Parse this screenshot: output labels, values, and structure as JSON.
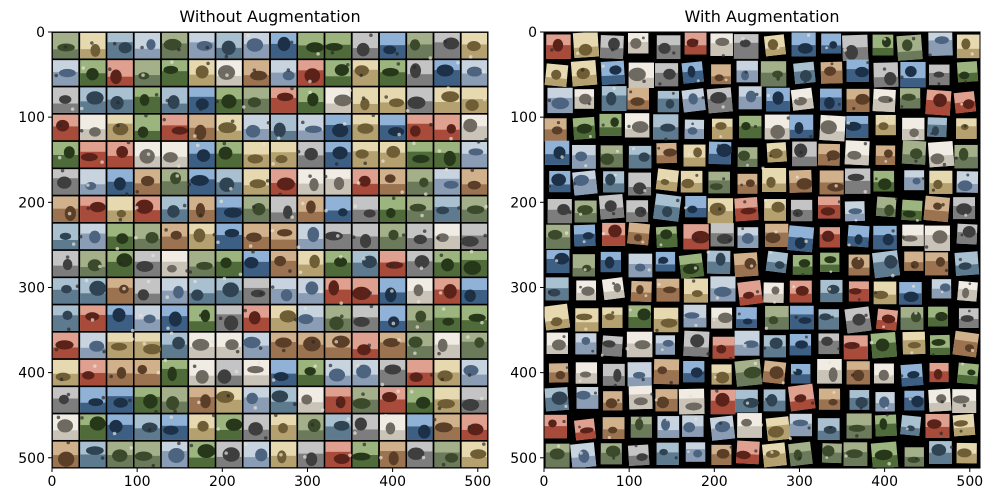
{
  "figure": {
    "panels": [
      {
        "title": "Without Augmentation"
      },
      {
        "title": "With Augmentation"
      }
    ]
  },
  "chart_data": [
    {
      "type": "heatmap",
      "title": "Without Augmentation",
      "xlabel": "",
      "ylabel": "",
      "xlim": [
        0,
        512
      ],
      "ylim": [
        512,
        0
      ],
      "xticks": [
        0,
        100,
        200,
        300,
        400,
        500
      ],
      "yticks": [
        0,
        100,
        200,
        300,
        400,
        500
      ],
      "grid": false,
      "image": {
        "kind": "image-grid",
        "rows": 16,
        "cols": 16,
        "tile_size": 32,
        "separator_color": "#000000",
        "augmented": false
      }
    },
    {
      "type": "heatmap",
      "title": "With Augmentation",
      "xlabel": "",
      "ylabel": "",
      "xlim": [
        0,
        512
      ],
      "ylim": [
        512,
        0
      ],
      "xticks": [
        0,
        100,
        200,
        300,
        400,
        500
      ],
      "yticks": [
        0,
        100,
        200,
        300,
        400,
        500
      ],
      "grid": false,
      "image": {
        "kind": "image-grid",
        "rows": 16,
        "cols": 16,
        "tile_size": 32,
        "separator_color": "#000000",
        "augmented": true
      }
    }
  ]
}
